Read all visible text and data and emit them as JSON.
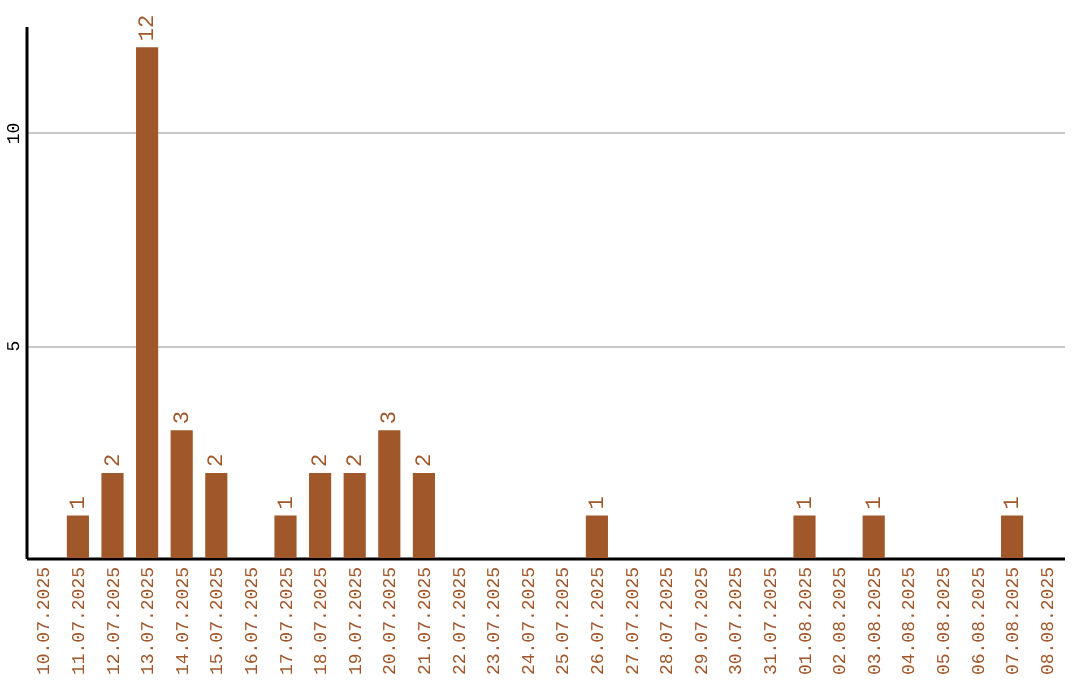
{
  "chart_data": {
    "type": "bar",
    "categories": [
      "10.07.2025",
      "11.07.2025",
      "12.07.2025",
      "13.07.2025",
      "14.07.2025",
      "15.07.2025",
      "16.07.2025",
      "17.07.2025",
      "18.07.2025",
      "19.07.2025",
      "20.07.2025",
      "21.07.2025",
      "22.07.2025",
      "23.07.2025",
      "24.07.2025",
      "25.07.2025",
      "26.07.2025",
      "27.07.2025",
      "28.07.2025",
      "29.07.2025",
      "30.07.2025",
      "31.07.2025",
      "01.08.2025",
      "02.08.2025",
      "03.08.2025",
      "04.08.2025",
      "05.08.2025",
      "06.08.2025",
      "07.08.2025",
      "08.08.2025"
    ],
    "values": [
      0,
      1,
      2,
      12,
      3,
      2,
      0,
      1,
      2,
      2,
      3,
      2,
      0,
      0,
      0,
      0,
      1,
      0,
      0,
      0,
      0,
      0,
      1,
      0,
      1,
      0,
      0,
      0,
      1,
      0
    ],
    "value_labels": [
      null,
      "1",
      "2",
      "12",
      "3",
      "2",
      null,
      "1",
      "2",
      "2",
      "3",
      "2",
      null,
      null,
      null,
      null,
      "1",
      null,
      null,
      null,
      null,
      null,
      "1",
      null,
      "1",
      null,
      null,
      null,
      "1",
      null
    ],
    "color": "#a0572a",
    "ylim": [
      0,
      12.5
    ],
    "yticks": [
      5,
      10
    ],
    "grid": true
  }
}
